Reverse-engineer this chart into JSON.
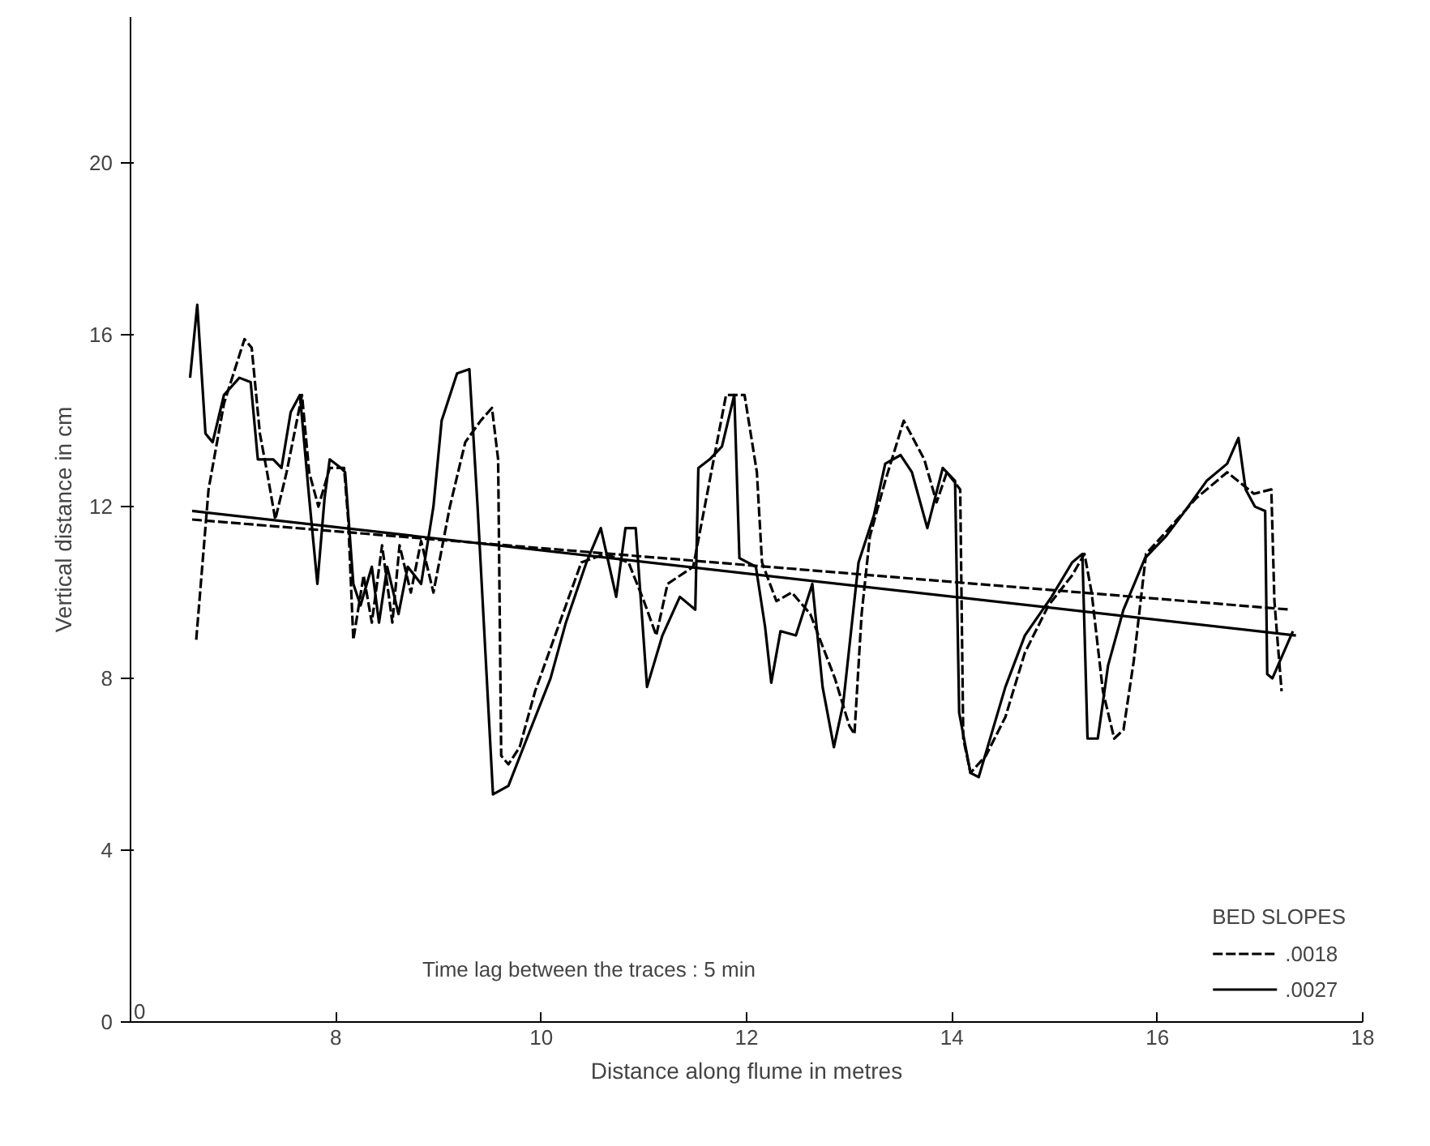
{
  "chart_data": {
    "type": "line",
    "xlabel": "Distance along flume in metres",
    "ylabel": "Vertical distance in cm",
    "legend_title": "BED SLOPES",
    "legend": "bottom right",
    "grid": false,
    "marker": "none",
    "xlim": [
      6,
      18
    ],
    "xticks": [
      {
        "value": 6,
        "label": null
      },
      8,
      10,
      12,
      14,
      16,
      18
    ],
    "ylim": [
      0,
      23.4
    ],
    "yticks": [
      0,
      4,
      8,
      12,
      16,
      20
    ],
    "annotations": [
      "Time lag between the traces : 5 min",
      "0"
    ],
    "series": [
      {
        "name": ".0018",
        "color": "#000000",
        "line_style": "dashed",
        "x": [
          6.64,
          6.76,
          6.91,
          7.11,
          7.18,
          7.26,
          7.33,
          7.41,
          7.52,
          7.67,
          7.74,
          7.83,
          7.94,
          8.08,
          8.12,
          8.17,
          8.27,
          8.35,
          8.45,
          8.55,
          8.62,
          8.73,
          8.83,
          8.95,
          9.11,
          9.26,
          9.41,
          9.52,
          9.58,
          9.61,
          9.68,
          9.79,
          9.94,
          10.09,
          10.24,
          10.39,
          10.62,
          10.85,
          11.0,
          11.12,
          11.23,
          11.48,
          11.68,
          11.8,
          11.98,
          12.1,
          12.15,
          12.29,
          12.44,
          12.62,
          12.86,
          13.0,
          13.05,
          13.12,
          13.2,
          13.35,
          13.53,
          13.73,
          13.85,
          13.95,
          14.08,
          14.11,
          14.18,
          14.33,
          14.52,
          14.71,
          14.94,
          15.17,
          15.29,
          15.36,
          15.47,
          15.58,
          15.67,
          15.77,
          15.89,
          16.08,
          16.38,
          16.68,
          16.94,
          17.11,
          17.14,
          17.21
        ],
        "values": [
          8.9,
          12.4,
          14.4,
          15.9,
          15.7,
          13.7,
          12.8,
          11.7,
          12.8,
          14.6,
          12.8,
          12.0,
          12.9,
          12.9,
          11.7,
          8.9,
          10.4,
          9.3,
          11.1,
          9.3,
          11.1,
          10.0,
          11.2,
          10.0,
          12.0,
          13.5,
          14.0,
          14.3,
          13.1,
          6.2,
          6.0,
          6.4,
          7.7,
          8.7,
          9.7,
          10.7,
          10.9,
          10.7,
          9.8,
          9.0,
          10.2,
          10.6,
          13.1,
          14.6,
          14.6,
          12.8,
          10.7,
          9.8,
          10.0,
          9.5,
          8.0,
          6.9,
          6.7,
          9.5,
          11.3,
          12.6,
          14.0,
          13.1,
          12.1,
          12.8,
          12.4,
          6.6,
          5.8,
          6.2,
          7.1,
          8.6,
          9.7,
          10.4,
          10.9,
          10.0,
          7.7,
          6.6,
          6.8,
          8.4,
          10.9,
          11.4,
          12.2,
          12.8,
          12.3,
          12.4,
          9.8,
          7.7
        ]
      },
      {
        "name": ".0027",
        "color": "#000000",
        "line_style": "solid",
        "x": [
          6.58,
          6.65,
          6.73,
          6.8,
          6.91,
          7.06,
          7.17,
          7.24,
          7.39,
          7.47,
          7.56,
          7.65,
          7.74,
          7.82,
          7.89,
          7.94,
          8.05,
          8.09,
          8.17,
          8.24,
          8.35,
          8.42,
          8.5,
          8.61,
          8.7,
          8.83,
          8.95,
          9.03,
          9.18,
          9.3,
          9.38,
          9.53,
          9.68,
          9.86,
          10.09,
          10.24,
          10.44,
          10.58,
          10.73,
          10.82,
          10.92,
          11.03,
          11.18,
          11.35,
          11.5,
          11.53,
          11.64,
          11.76,
          11.88,
          11.93,
          12.09,
          12.18,
          12.24,
          12.33,
          12.48,
          12.64,
          12.74,
          12.85,
          12.94,
          13.09,
          13.24,
          13.35,
          13.5,
          13.61,
          13.76,
          13.91,
          14.03,
          14.07,
          14.18,
          14.26,
          14.52,
          14.71,
          14.97,
          15.17,
          15.27,
          15.32,
          15.42,
          15.52,
          15.67,
          15.88,
          16.08,
          16.27,
          16.48,
          16.68,
          16.79,
          16.86,
          16.95,
          17.05,
          17.07,
          17.12,
          17.32
        ],
        "values": [
          15.0,
          16.7,
          13.7,
          13.5,
          14.6,
          15.0,
          14.9,
          13.1,
          13.1,
          12.9,
          14.2,
          14.6,
          12.2,
          10.2,
          12.2,
          13.1,
          12.9,
          12.8,
          10.2,
          9.7,
          10.6,
          9.3,
          10.6,
          9.5,
          10.6,
          10.2,
          12.0,
          14.0,
          15.1,
          15.2,
          12.0,
          5.3,
          5.5,
          6.6,
          8.0,
          9.3,
          10.7,
          11.5,
          9.9,
          11.5,
          11.5,
          7.8,
          9.0,
          9.9,
          9.6,
          12.9,
          13.1,
          13.4,
          14.6,
          10.8,
          10.6,
          9.2,
          7.9,
          9.1,
          9.0,
          10.2,
          7.8,
          6.4,
          7.4,
          10.7,
          11.8,
          13.0,
          13.2,
          12.8,
          11.5,
          12.9,
          12.6,
          7.2,
          5.8,
          5.7,
          7.8,
          9.0,
          9.9,
          10.7,
          10.9,
          6.6,
          6.6,
          8.3,
          9.6,
          10.8,
          11.3,
          11.9,
          12.6,
          13.0,
          13.6,
          12.4,
          12.0,
          11.9,
          8.1,
          8.0,
          9.1
        ]
      },
      {
        "color": "#000000",
        "line_style": "dashed",
        "x": [
          6.6,
          17.3
        ],
        "values": [
          11.7,
          9.6
        ]
      },
      {
        "color": "#000000",
        "line_style": "solid",
        "x": [
          6.6,
          17.35
        ],
        "values": [
          11.9,
          9.0
        ]
      }
    ]
  }
}
